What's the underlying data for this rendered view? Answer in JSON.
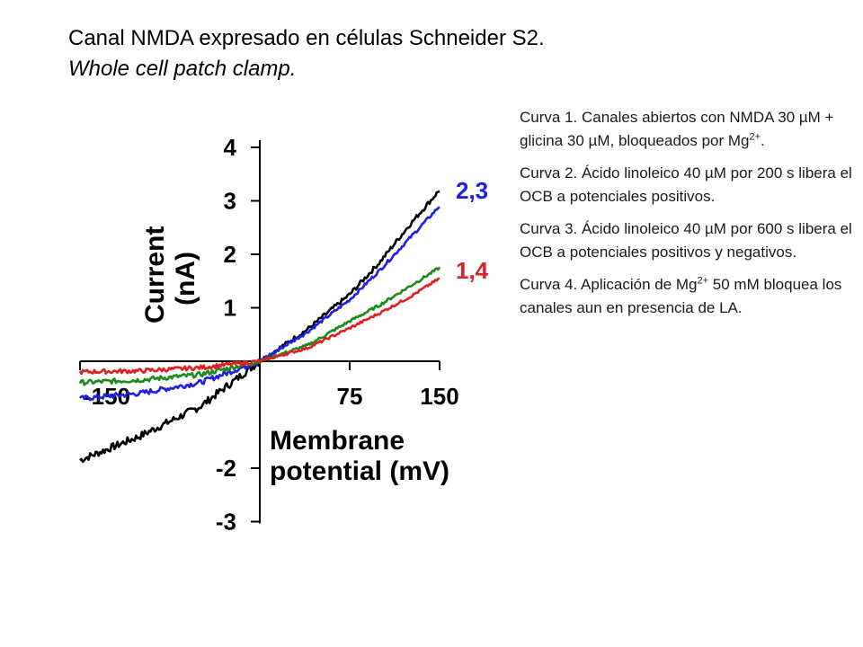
{
  "title": {
    "line1": "Canal NMDA expresado en células Schneider S2.",
    "line2": "Whole cell patch clamp."
  },
  "notes": [
    {
      "pre": "Curva 1. Canales abiertos con NMDA 30 µM + glicina 30 µM, bloqueados por Mg",
      "sup": "2+",
      "post": "."
    },
    {
      "pre": "Curva 2. Ácido linoleico 40 µM por 200 s libera el OCB a potenciales positivos.",
      "sup": "",
      "post": ""
    },
    {
      "pre": "Curva 3. Ácido linoleico 40 µM por 600 s libera el OCB a potenciales positivos y negativos.",
      "sup": "",
      "post": ""
    },
    {
      "pre": "Curva 4. Aplicación de Mg",
      "sup": "2+",
      "post": " 50 mM bloquea los canales aun en presencia de LA."
    }
  ],
  "chart_data": {
    "type": "line",
    "xlabel": "Membrane potential (mV)",
    "ylabel": "Current (nA)",
    "xlim": [
      -150,
      150
    ],
    "ylim": [
      -3,
      4
    ],
    "xticks": [
      -150,
      75,
      150
    ],
    "yticks": [
      4,
      3,
      2,
      1,
      -2,
      -3
    ],
    "x": [
      -150,
      -100,
      -50,
      0,
      40,
      75,
      100,
      125,
      150
    ],
    "series": [
      {
        "name": "",
        "color": "#000000",
        "values": [
          -1.85,
          -1.4,
          -0.85,
          0,
          0.6,
          1.25,
          1.85,
          2.55,
          3.2
        ]
      },
      {
        "name": "",
        "color": "#1f1fe0",
        "values": [
          -0.7,
          -0.6,
          -0.4,
          0,
          0.55,
          1.15,
          1.7,
          2.3,
          2.9
        ]
      },
      {
        "name": "",
        "color": "#1a8a1a",
        "values": [
          -0.4,
          -0.35,
          -0.25,
          0,
          0.3,
          0.75,
          1.05,
          1.4,
          1.75
        ]
      },
      {
        "name": "",
        "color": "#e01f1f",
        "values": [
          -0.2,
          -0.18,
          -0.12,
          0,
          0.25,
          0.62,
          0.9,
          1.2,
          1.55
        ]
      }
    ],
    "curve_labels": [
      {
        "text": "2,3",
        "color": "#1f1fe0"
      },
      {
        "text": "1,4",
        "color": "#e01f1f"
      }
    ]
  }
}
